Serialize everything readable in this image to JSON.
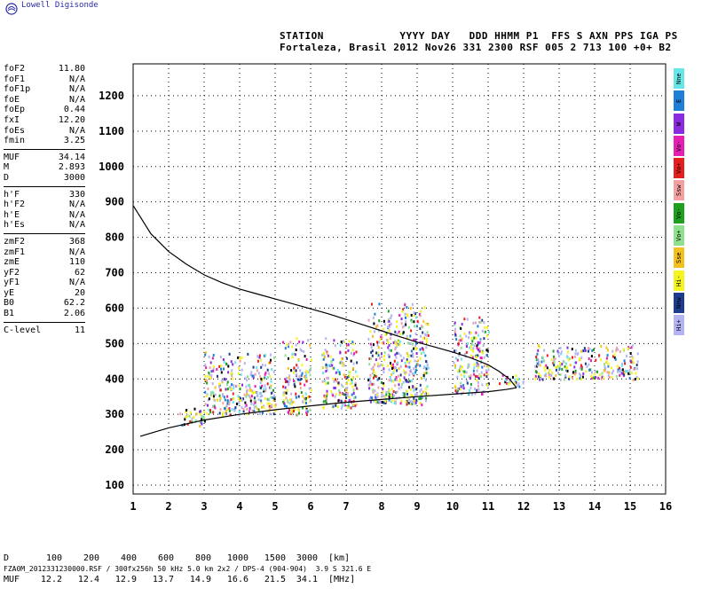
{
  "brand": "Lowell Digisonde",
  "header": {
    "line1": "STATION            YYYY DAY   DDD HHMM P1  FFS S AXN PPS IGA PS",
    "line2": "Fortaleza, Brasil 2012 Nov26 331 2300 RSF 005 2 713 100 +0+ B2"
  },
  "params": {
    "group1": [
      {
        "k": "foF2",
        "v": "11.80"
      },
      {
        "k": "foF1",
        "v": "N/A"
      },
      {
        "k": "foF1p",
        "v": "N/A"
      },
      {
        "k": "foE",
        "v": "N/A"
      },
      {
        "k": "foEp",
        "v": "0.44"
      },
      {
        "k": "fxI",
        "v": "12.20"
      },
      {
        "k": "foEs",
        "v": "N/A"
      },
      {
        "k": "fmin",
        "v": "3.25"
      }
    ],
    "group2": [
      {
        "k": "MUF",
        "v": "34.14"
      },
      {
        "k": "M",
        "v": "2.893"
      },
      {
        "k": "D",
        "v": "3000"
      }
    ],
    "group3": [
      {
        "k": "h'F",
        "v": "330"
      },
      {
        "k": "h'F2",
        "v": "N/A"
      },
      {
        "k": "h'E",
        "v": "N/A"
      },
      {
        "k": "h'Es",
        "v": "N/A"
      }
    ],
    "group4": [
      {
        "k": "zmF2",
        "v": "368"
      },
      {
        "k": "zmF1",
        "v": "N/A"
      },
      {
        "k": "zmE",
        "v": "110"
      },
      {
        "k": "yF2",
        "v": "62"
      },
      {
        "k": "yF1",
        "v": "N/A"
      },
      {
        "k": "yE",
        "v": "20"
      },
      {
        "k": "B0",
        "v": "62.2"
      },
      {
        "k": "B1",
        "v": "2.06"
      }
    ],
    "group5": [
      {
        "k": "C-level",
        "v": "11"
      }
    ]
  },
  "legend": [
    {
      "label": "Nne",
      "color": "#66e6e6"
    },
    {
      "label": "E",
      "color": "#1e7fd6"
    },
    {
      "label": "W",
      "color": "#8a2be2"
    },
    {
      "label": "Vo-",
      "color": "#e61eb4"
    },
    {
      "label": "Vo+",
      "color": "#e61e1e"
    },
    {
      "label": "Ssw",
      "color": "#f4a0a0"
    },
    {
      "label": "Vo-",
      "color": "#1ea01e"
    },
    {
      "label": "Vo+",
      "color": "#8fe08f"
    },
    {
      "label": "Sse",
      "color": "#f4c01e"
    },
    {
      "label": "Hi-",
      "color": "#f4f41e"
    },
    {
      "label": "Nnw",
      "color": "#1e3c8f"
    },
    {
      "label": "Hi+",
      "color": "#b4b4f4"
    }
  ],
  "muf_table": {
    "d_label": "D",
    "d_values": [
      "100",
      "200",
      "400",
      "600",
      "800",
      "1000",
      "1500",
      "3000"
    ],
    "d_unit": "[km]",
    "muf_label": "MUF",
    "muf_values": [
      "12.2",
      "12.4",
      "12.9",
      "13.7",
      "14.9",
      "16.6",
      "21.5",
      "34.1"
    ],
    "muf_unit": "[MHz]"
  },
  "footer": "FZA0M_2012331230000.RSF / 300fx256h 50 kHz 5.0 km 2x2 / DPS-4 (904-904)  3.9 S 321.6 E",
  "chart_data": {
    "type": "scatter",
    "title": "",
    "xlabel": "",
    "ylabel": "",
    "xlim": [
      1,
      16
    ],
    "ylim": [
      75,
      1290
    ],
    "x_ticks": [
      "1",
      "2",
      "3",
      "4",
      "5",
      "6",
      "7",
      "8",
      "9",
      "10",
      "11",
      "12",
      "13",
      "14",
      "15",
      "16"
    ],
    "y_ticks": [
      "100",
      "200",
      "300",
      "400",
      "500",
      "600",
      "700",
      "800",
      "900",
      "1000",
      "1100",
      "1200"
    ],
    "grid": true,
    "traces": [
      {
        "name": "",
        "x": [
          11.8,
          11.6,
          11.3,
          11.0,
          10.5,
          10.0,
          9.5,
          9.0,
          8.5,
          8.0,
          7.5,
          7.0,
          6.5,
          6.0,
          5.5,
          5.0,
          4.5,
          4.0,
          3.5,
          3.0,
          2.5,
          2.0,
          1.5,
          1.0
        ],
        "y": [
          375,
          400,
          422,
          440,
          460,
          476,
          490,
          504,
          520,
          536,
          552,
          568,
          584,
          598,
          612,
          626,
          640,
          654,
          672,
          694,
          724,
          760,
          810,
          890
        ]
      },
      {
        "name": "",
        "x": [
          1.2,
          2.0,
          3.0,
          4.0,
          5.0,
          6.0,
          7.0,
          8.0,
          9.0,
          10.0,
          11.0,
          11.5,
          11.8
        ],
        "y": [
          238,
          262,
          284,
          300,
          313,
          324,
          334,
          342,
          350,
          357,
          364,
          370,
          375
        ]
      }
    ],
    "echo_blocks": [
      {
        "x": [
          2.3,
          3.0
        ],
        "y": [
          270,
          330
        ]
      },
      {
        "x": [
          3.0,
          5.0
        ],
        "y": [
          300,
          480
        ]
      },
      {
        "x": [
          5.2,
          6.0
        ],
        "y": [
          300,
          520
        ]
      },
      {
        "x": [
          6.3,
          7.3
        ],
        "y": [
          320,
          520
        ]
      },
      {
        "x": [
          7.6,
          9.3
        ],
        "y": [
          330,
          620
        ]
      },
      {
        "x": [
          10.0,
          11.0
        ],
        "y": [
          360,
          580
        ]
      },
      {
        "x": [
          11.3,
          12.0
        ],
        "y": [
          380,
          420
        ]
      },
      {
        "x": [
          12.3,
          15.2
        ],
        "y": [
          400,
          500
        ]
      }
    ]
  }
}
